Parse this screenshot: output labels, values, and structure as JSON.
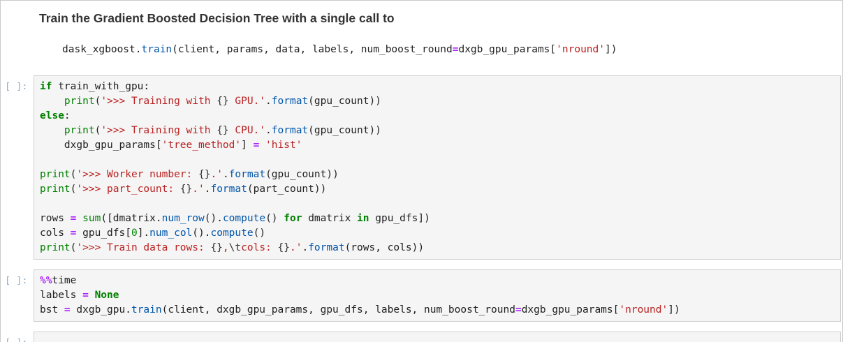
{
  "markdown": {
    "heading": "Train the Gradient Boosted Decision Tree with a single call to",
    "code_lines": [
      [
        {
          "t": "dask_xgboost."
        },
        {
          "c": "prop",
          "t": "train"
        },
        {
          "t": "(client, params, data, labels, num_boost_round"
        },
        {
          "c": "op",
          "t": "="
        },
        {
          "t": "dxgb_gpu_params["
        },
        {
          "c": "str",
          "t": "'nround'"
        },
        {
          "t": "])"
        }
      ]
    ]
  },
  "cells": [
    {
      "prompt": "[ ]:",
      "code": [
        [
          {
            "c": "kw",
            "t": "if"
          },
          {
            "t": " train_with_gpu:"
          }
        ],
        [
          {
            "t": "    "
          },
          {
            "c": "bi",
            "t": "print"
          },
          {
            "t": "("
          },
          {
            "c": "str",
            "t": "'>>> Training with "
          },
          {
            "c": "esc",
            "t": "{}"
          },
          {
            "c": "str",
            "t": " GPU.'"
          },
          {
            "t": "."
          },
          {
            "c": "prop",
            "t": "format"
          },
          {
            "t": "(gpu_count))"
          }
        ],
        [
          {
            "c": "kw",
            "t": "else"
          },
          {
            "t": ":"
          }
        ],
        [
          {
            "t": "    "
          },
          {
            "c": "bi",
            "t": "print"
          },
          {
            "t": "("
          },
          {
            "c": "str",
            "t": "'>>> Training with "
          },
          {
            "c": "esc",
            "t": "{}"
          },
          {
            "c": "str",
            "t": " CPU.'"
          },
          {
            "t": "."
          },
          {
            "c": "prop",
            "t": "format"
          },
          {
            "t": "(gpu_count))"
          }
        ],
        [
          {
            "t": "    dxgb_gpu_params["
          },
          {
            "c": "str",
            "t": "'tree_method'"
          },
          {
            "t": "] "
          },
          {
            "c": "op",
            "t": "="
          },
          {
            "t": " "
          },
          {
            "c": "str",
            "t": "'hist'"
          }
        ],
        [],
        [
          {
            "c": "bi",
            "t": "print"
          },
          {
            "t": "("
          },
          {
            "c": "str",
            "t": "'>>> Worker number: "
          },
          {
            "c": "esc",
            "t": "{}"
          },
          {
            "c": "str",
            "t": ".'"
          },
          {
            "t": "."
          },
          {
            "c": "prop",
            "t": "format"
          },
          {
            "t": "(gpu_count))"
          }
        ],
        [
          {
            "c": "bi",
            "t": "print"
          },
          {
            "t": "("
          },
          {
            "c": "str",
            "t": "'>>> part_count: "
          },
          {
            "c": "esc",
            "t": "{}"
          },
          {
            "c": "str",
            "t": ".'"
          },
          {
            "t": "."
          },
          {
            "c": "prop",
            "t": "format"
          },
          {
            "t": "(part_count))"
          }
        ],
        [],
        [
          {
            "t": "rows "
          },
          {
            "c": "op",
            "t": "="
          },
          {
            "t": " "
          },
          {
            "c": "bi",
            "t": "sum"
          },
          {
            "t": "([dmatrix."
          },
          {
            "c": "prop",
            "t": "num_row"
          },
          {
            "t": "()."
          },
          {
            "c": "prop",
            "t": "compute"
          },
          {
            "t": "() "
          },
          {
            "c": "kw",
            "t": "for"
          },
          {
            "t": " dmatrix "
          },
          {
            "c": "kw",
            "t": "in"
          },
          {
            "t": " gpu_dfs])"
          }
        ],
        [
          {
            "t": "cols "
          },
          {
            "c": "op",
            "t": "="
          },
          {
            "t": " gpu_dfs["
          },
          {
            "c": "num",
            "t": "0"
          },
          {
            "t": "]."
          },
          {
            "c": "prop",
            "t": "num_col"
          },
          {
            "t": "()."
          },
          {
            "c": "prop",
            "t": "compute"
          },
          {
            "t": "()"
          }
        ],
        [
          {
            "c": "bi",
            "t": "print"
          },
          {
            "t": "("
          },
          {
            "c": "str",
            "t": "'>>> Train data rows: "
          },
          {
            "c": "esc",
            "t": "{}"
          },
          {
            "c": "str",
            "t": ","
          },
          {
            "c": "esc",
            "t": "\\t"
          },
          {
            "c": "str",
            "t": "cols: "
          },
          {
            "c": "esc",
            "t": "{}"
          },
          {
            "c": "str",
            "t": ".'"
          },
          {
            "t": "."
          },
          {
            "c": "prop",
            "t": "format"
          },
          {
            "t": "(rows, cols))"
          }
        ]
      ]
    },
    {
      "prompt": "[ ]:",
      "code": [
        [
          {
            "c": "op",
            "t": "%%"
          },
          {
            "t": "time"
          }
        ],
        [
          {
            "t": "labels "
          },
          {
            "c": "op",
            "t": "="
          },
          {
            "t": " "
          },
          {
            "c": "kw",
            "t": "None"
          }
        ],
        [
          {
            "t": "bst "
          },
          {
            "c": "op",
            "t": "="
          },
          {
            "t": " dxgb_gpu."
          },
          {
            "c": "prop",
            "t": "train"
          },
          {
            "t": "(client, dxgb_gpu_params, gpu_dfs, labels, num_boost_round"
          },
          {
            "c": "op",
            "t": "="
          },
          {
            "t": "dxgb_gpu_params["
          },
          {
            "c": "str",
            "t": "'nround'"
          },
          {
            "t": "])"
          }
        ]
      ]
    },
    {
      "prompt": "[ ]:",
      "code": [
        []
      ]
    }
  ],
  "colors": {
    "keyword": "#008000",
    "builtin": "#008000",
    "string": "#BA2121",
    "property": "#0055aa",
    "operator": "#AA22FF",
    "number": "#008800",
    "cell_background": "#f5f5f5",
    "cell_border": "#cfcfcf",
    "prompt": "#8eaecd",
    "heading": "#333333"
  }
}
